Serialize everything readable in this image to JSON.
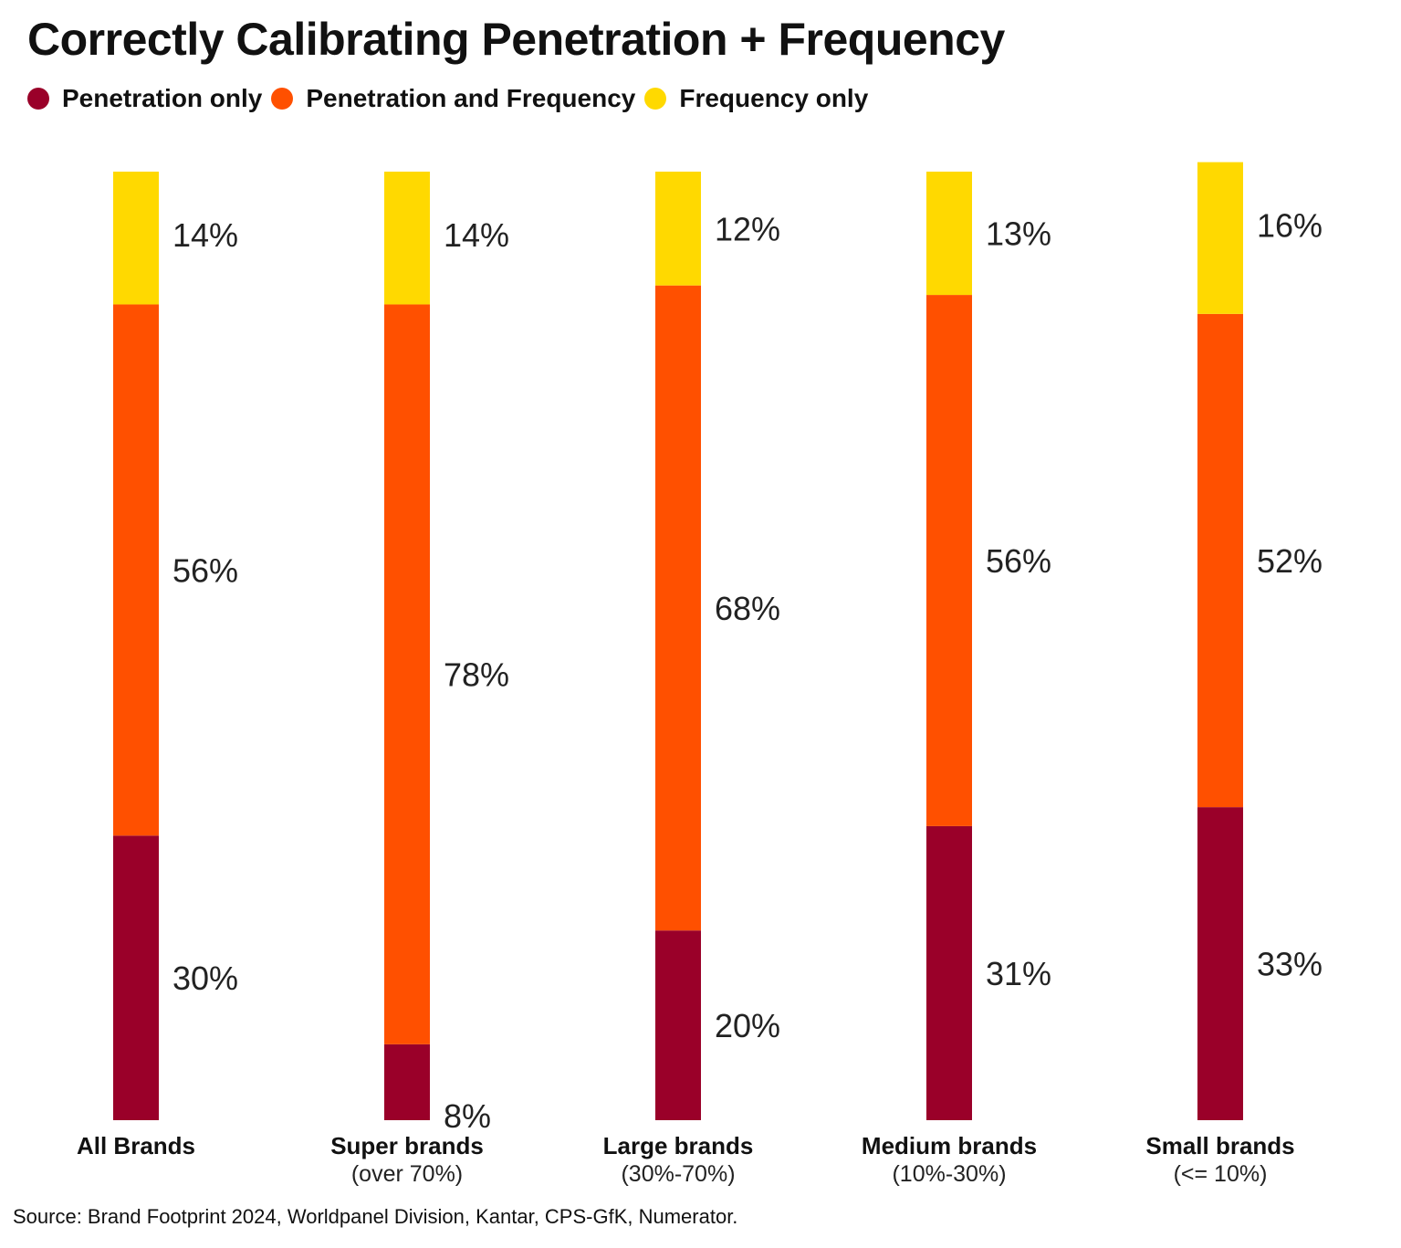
{
  "title": "Correctly Calibrating Penetration + Frequency",
  "legend": [
    {
      "label": "Penetration only",
      "color": "#9a0029"
    },
    {
      "label": "Penetration and Frequency",
      "color": "#ff5000"
    },
    {
      "label": "Frequency only",
      "color": "#ffd900"
    }
  ],
  "source": "Source: Brand Footprint 2024, Worldpanel Division, Kantar, CPS-GfK, Numerator.",
  "chart_data": {
    "type": "bar",
    "stacked": true,
    "orientation": "vertical",
    "categories": [
      "All Brands",
      "Super brands",
      "Large brands",
      "Medium brands",
      "Small brands"
    ],
    "category_subtitles": [
      "",
      "(over 70%)",
      "(30%-70%)",
      "(10%-30%)",
      "(<= 10%)"
    ],
    "series": [
      {
        "name": "Penetration only",
        "color": "#9a0029",
        "values": [
          30,
          8,
          20,
          31,
          33
        ],
        "labels": [
          "30%",
          "8%",
          "20%",
          "31%",
          "33%"
        ]
      },
      {
        "name": "Penetration and Frequency",
        "color": "#ff5000",
        "values": [
          56,
          78,
          68,
          56,
          52
        ],
        "labels": [
          "56%",
          "78%",
          "68%",
          "56%",
          "52%"
        ]
      },
      {
        "name": "Frequency only",
        "color": "#ffd900",
        "values": [
          14,
          14,
          12,
          13,
          16
        ],
        "labels": [
          "14%",
          "14%",
          "12%",
          "13%",
          "16%"
        ]
      }
    ],
    "ylim": [
      0,
      100
    ],
    "grid": false,
    "legend_position": "top-left"
  }
}
